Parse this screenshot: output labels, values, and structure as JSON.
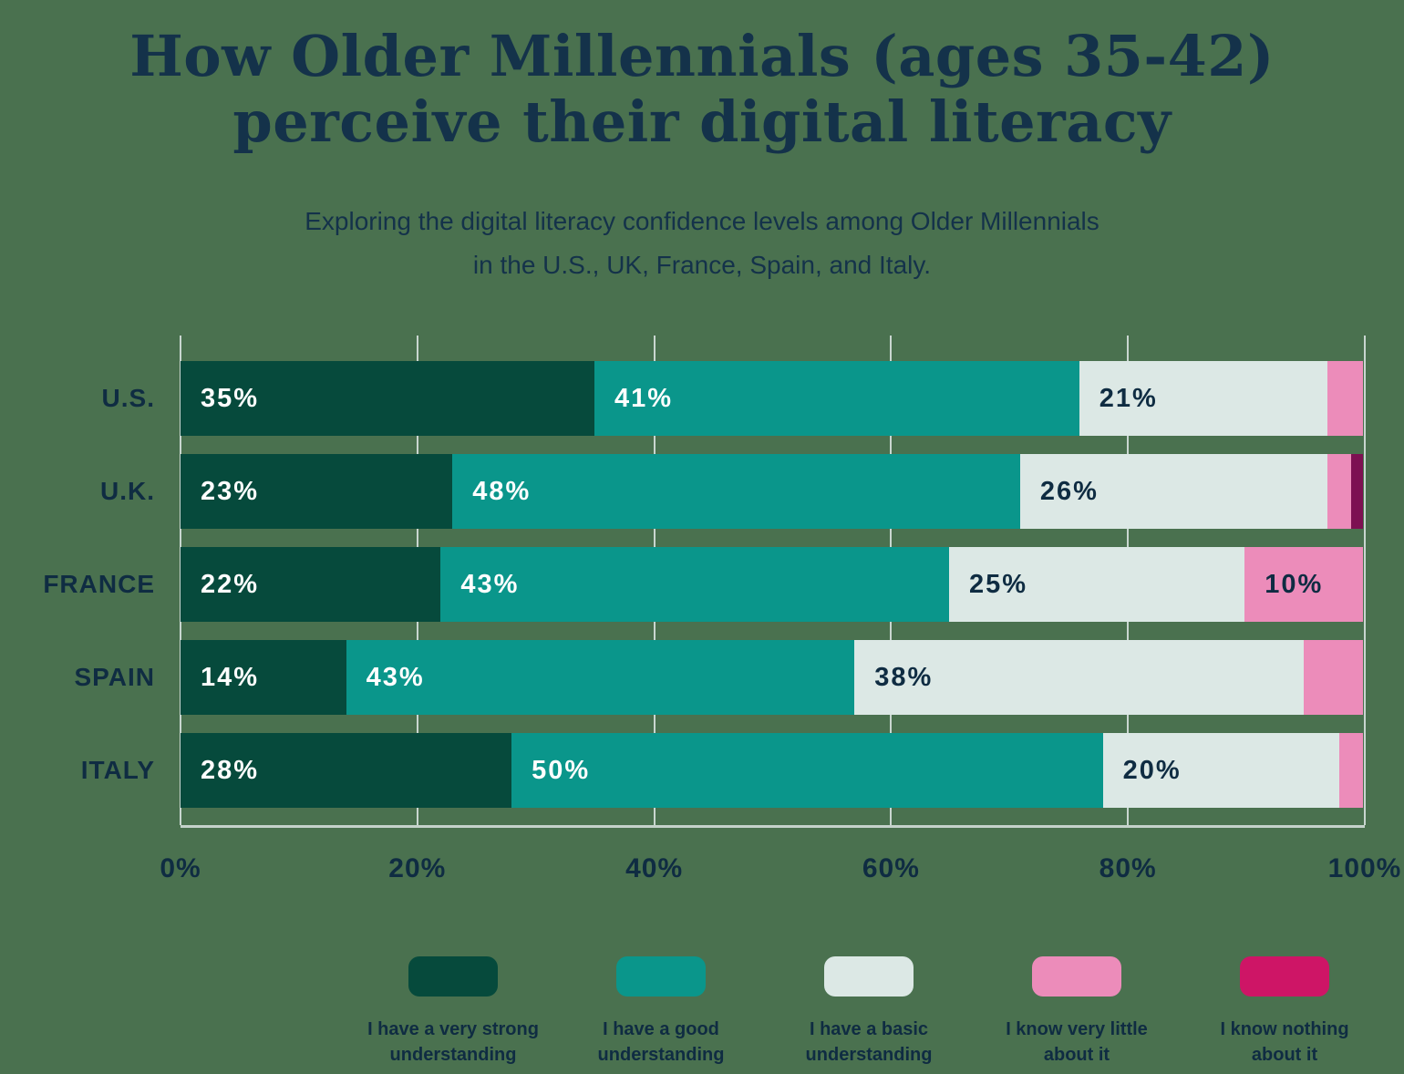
{
  "page": {
    "background_color": "#4A714F",
    "navy_text_color": "#0F2C42"
  },
  "header": {
    "title_line1": "How Older Millennials (ages 35-42)",
    "title_line2": "perceive their digital literacy",
    "subtitle_line1": "Exploring the digital literacy confidence levels among Older Millennials",
    "subtitle_line2": "in the U.S., UK, France, Spain, and Italy."
  },
  "chart_data": {
    "type": "bar",
    "orientation": "horizontal",
    "stacked": true,
    "title": "How Older Millennials (ages 35-42) perceive their digital literacy",
    "categories": [
      "U.S.",
      "U.K.",
      "FRANCE",
      "SPAIN",
      "ITALY"
    ],
    "series": [
      {
        "name": "I have a very strong understanding",
        "color": "#064A3C",
        "label_color": "#FFFFFF",
        "values": [
          35,
          23,
          22,
          14,
          28
        ]
      },
      {
        "name": "I have a good understanding",
        "color": "#0A968B",
        "label_color": "#FFFFFF",
        "values": [
          41,
          48,
          43,
          43,
          50
        ]
      },
      {
        "name": "I have a basic understanding",
        "color": "#DCE8E5",
        "label_color": "#0F2C42",
        "values": [
          21,
          26,
          25,
          38,
          20
        ]
      },
      {
        "name": "I know very little about it",
        "color": "#EC8CBA",
        "label_color": "#0F2C42",
        "values": [
          3,
          2,
          10,
          5,
          2
        ]
      },
      {
        "name": "I know nothing about it",
        "color": "#7D1052",
        "label_color": "#FFFFFF",
        "values": [
          0,
          1,
          0,
          0,
          0
        ]
      }
    ],
    "value_suffix": "%",
    "min_label_value": 10,
    "x_ticks": [
      "0%",
      "20%",
      "40%",
      "60%",
      "80%",
      "100%"
    ],
    "x_range": [
      0,
      100
    ],
    "grid": true,
    "gridline_color": "#C9D6D0",
    "legend_position": "bottom"
  },
  "legend": {
    "items": [
      {
        "line1": "I have a very strong",
        "line2": "understanding",
        "color": "#064A3C"
      },
      {
        "line1": "I have a good",
        "line2": "understanding",
        "color": "#0A968B"
      },
      {
        "line1": "I have a basic",
        "line2": "understanding",
        "color": "#DCE8E5"
      },
      {
        "line1": "I know very little",
        "line2": "about it",
        "color": "#EC8CBA"
      },
      {
        "line1": "I know nothing",
        "line2": "about it",
        "color": "#CE1566"
      }
    ]
  }
}
